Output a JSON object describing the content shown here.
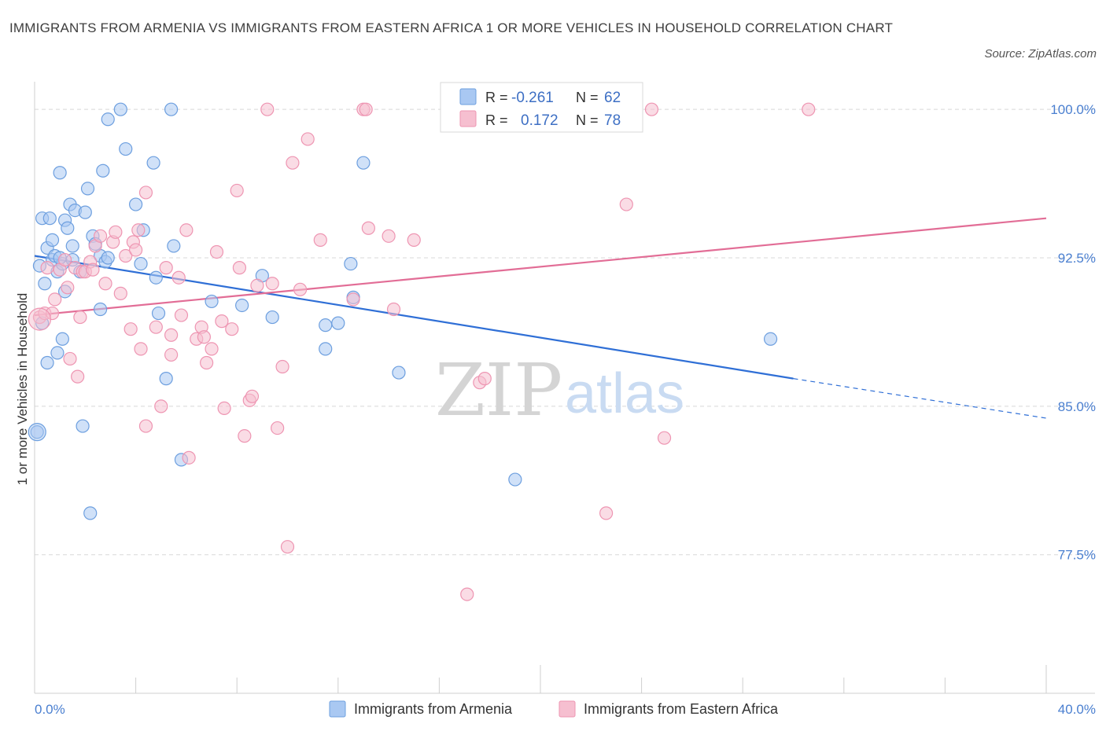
{
  "title": "IMMIGRANTS FROM ARMENIA VS IMMIGRANTS FROM EASTERN AFRICA 1 OR MORE VEHICLES IN HOUSEHOLD CORRELATION CHART",
  "source": "Source: ZipAtlas.com",
  "watermark": {
    "zip": "ZIP",
    "atlas": "atlas"
  },
  "legend": {
    "rows": [
      {
        "r_label": "R =",
        "r_value": "-0.261",
        "n_label": "N =",
        "n_value": "62"
      },
      {
        "r_label": "R =",
        "r_value": "0.172",
        "n_label": "N =",
        "n_value": "78"
      }
    ]
  },
  "bottom_legend": [
    "Immigrants from Armenia",
    "Immigrants from Eastern Africa"
  ],
  "colors": {
    "armenia_fill": "#a9c8f2",
    "armenia_stroke": "#6d9fdf",
    "armenia_line": "#2f6fd6",
    "eafrica_fill": "#f6bfd0",
    "eafrica_stroke": "#ee95b2",
    "eafrica_line": "#e26d96",
    "tick_label": "#4a7fd0",
    "grid": "#d8d8d8"
  },
  "chart_data": {
    "type": "scatter",
    "xlabel": "",
    "ylabel": "1 or more Vehicles in Household",
    "xlim": [
      0,
      40
    ],
    "ylim": [
      70.5,
      101
    ],
    "x_tick_labels": [
      {
        "value": 0,
        "label": "0.0%"
      },
      {
        "value": 40,
        "label": "40.0%"
      }
    ],
    "y_tick_labels": [
      {
        "value": 100,
        "label": "100.0%"
      },
      {
        "value": 92.5,
        "label": "92.5%"
      },
      {
        "value": 85,
        "label": "85.0%"
      },
      {
        "value": 77.5,
        "label": "77.5%"
      }
    ],
    "grid": "horizontal dashed",
    "series": [
      {
        "name": "Immigrants from Armenia",
        "r": -0.261,
        "n": 62,
        "trend": {
          "x0": 0,
          "y0": 92.6,
          "x1": 30,
          "y1": 86.4,
          "dash_to_x": 40,
          "dash_to_y": 84.4
        },
        "points": [
          [
            0.1,
            83.7
          ],
          [
            0.2,
            92.1
          ],
          [
            0.3,
            89.2
          ],
          [
            0.3,
            94.5
          ],
          [
            0.4,
            91.2
          ],
          [
            0.5,
            93.0
          ],
          [
            0.5,
            87.2
          ],
          [
            0.6,
            94.5
          ],
          [
            0.7,
            93.4
          ],
          [
            0.7,
            92.4
          ],
          [
            0.8,
            92.6
          ],
          [
            0.9,
            87.7
          ],
          [
            0.9,
            91.8
          ],
          [
            1.0,
            96.8
          ],
          [
            1.1,
            88.4
          ],
          [
            1.1,
            92.2
          ],
          [
            1.2,
            94.4
          ],
          [
            1.2,
            90.8
          ],
          [
            1.3,
            94.0
          ],
          [
            1.4,
            95.2
          ],
          [
            1.5,
            92.4
          ],
          [
            1.5,
            93.1
          ],
          [
            1.6,
            94.9
          ],
          [
            1.8,
            91.8
          ],
          [
            1.9,
            84.0
          ],
          [
            2.0,
            94.8
          ],
          [
            2.1,
            96.0
          ],
          [
            2.2,
            79.6
          ],
          [
            2.3,
            93.6
          ],
          [
            2.4,
            93.2
          ],
          [
            2.6,
            92.6
          ],
          [
            2.6,
            89.9
          ],
          [
            2.7,
            96.9
          ],
          [
            2.8,
            92.3
          ],
          [
            2.9,
            99.5
          ],
          [
            3.4,
            100.0
          ],
          [
            3.6,
            98.0
          ],
          [
            4.0,
            95.2
          ],
          [
            4.2,
            92.2
          ],
          [
            4.3,
            93.9
          ],
          [
            4.7,
            97.3
          ],
          [
            4.8,
            91.5
          ],
          [
            4.9,
            89.7
          ],
          [
            5.2,
            86.4
          ],
          [
            5.4,
            100.0
          ],
          [
            5.5,
            93.1
          ],
          [
            5.8,
            82.3
          ],
          [
            7.0,
            90.3
          ],
          [
            8.2,
            90.1
          ],
          [
            9.0,
            91.6
          ],
          [
            9.4,
            89.5
          ],
          [
            11.5,
            87.9
          ],
          [
            11.5,
            89.1
          ],
          [
            12.0,
            89.2
          ],
          [
            12.5,
            92.2
          ],
          [
            12.6,
            90.5
          ],
          [
            13.0,
            97.3
          ],
          [
            14.4,
            86.7
          ],
          [
            19.0,
            81.3
          ],
          [
            29.1,
            88.4
          ],
          [
            2.9,
            92.5
          ],
          [
            1.0,
            92.5
          ]
        ]
      },
      {
        "name": "Immigrants from Eastern Africa",
        "r": 0.172,
        "n": 78,
        "trend": {
          "x0": 0,
          "y0": 89.6,
          "x1": 40,
          "y1": 94.5
        },
        "points": [
          [
            0.2,
            89.5
          ],
          [
            0.4,
            89.7
          ],
          [
            0.5,
            92.0
          ],
          [
            0.7,
            89.7
          ],
          [
            0.8,
            90.4
          ],
          [
            1.0,
            91.9
          ],
          [
            1.2,
            92.4
          ],
          [
            1.3,
            91.0
          ],
          [
            1.4,
            87.4
          ],
          [
            1.6,
            92.0
          ],
          [
            1.7,
            86.5
          ],
          [
            1.8,
            89.5
          ],
          [
            1.9,
            91.8
          ],
          [
            2.0,
            91.8
          ],
          [
            2.2,
            92.3
          ],
          [
            2.3,
            91.9
          ],
          [
            2.4,
            93.1
          ],
          [
            2.6,
            93.6
          ],
          [
            2.8,
            91.2
          ],
          [
            3.1,
            93.3
          ],
          [
            3.2,
            93.8
          ],
          [
            3.4,
            90.7
          ],
          [
            3.6,
            92.6
          ],
          [
            3.8,
            88.9
          ],
          [
            3.9,
            93.3
          ],
          [
            4.0,
            92.9
          ],
          [
            4.1,
            93.9
          ],
          [
            4.2,
            87.9
          ],
          [
            4.4,
            95.8
          ],
          [
            4.4,
            84.0
          ],
          [
            4.8,
            89.0
          ],
          [
            5.0,
            85.0
          ],
          [
            5.2,
            92.0
          ],
          [
            5.4,
            88.6
          ],
          [
            5.4,
            87.6
          ],
          [
            5.7,
            91.5
          ],
          [
            5.8,
            89.6
          ],
          [
            6.0,
            93.9
          ],
          [
            6.1,
            82.4
          ],
          [
            6.4,
            88.4
          ],
          [
            6.6,
            89.0
          ],
          [
            6.7,
            88.5
          ],
          [
            6.8,
            87.2
          ],
          [
            7.0,
            87.9
          ],
          [
            7.2,
            92.8
          ],
          [
            7.4,
            89.3
          ],
          [
            7.5,
            84.9
          ],
          [
            7.8,
            88.9
          ],
          [
            8.0,
            95.9
          ],
          [
            8.1,
            92.0
          ],
          [
            8.3,
            83.5
          ],
          [
            8.5,
            85.3
          ],
          [
            8.6,
            85.5
          ],
          [
            8.8,
            91.1
          ],
          [
            9.2,
            100.0
          ],
          [
            9.4,
            91.2
          ],
          [
            9.6,
            83.9
          ],
          [
            9.8,
            87.0
          ],
          [
            10.0,
            77.9
          ],
          [
            10.2,
            97.3
          ],
          [
            10.5,
            90.9
          ],
          [
            10.8,
            98.5
          ],
          [
            11.3,
            93.4
          ],
          [
            12.6,
            90.4
          ],
          [
            13.0,
            100.0
          ],
          [
            13.1,
            100.0
          ],
          [
            13.2,
            94.0
          ],
          [
            14.0,
            93.6
          ],
          [
            14.2,
            89.9
          ],
          [
            15.0,
            93.4
          ],
          [
            17.1,
            75.5
          ],
          [
            17.6,
            86.2
          ],
          [
            17.8,
            86.4
          ],
          [
            22.6,
            79.6
          ],
          [
            23.4,
            95.2
          ],
          [
            24.4,
            100.0
          ],
          [
            24.9,
            83.4
          ],
          [
            30.6,
            100.0
          ]
        ]
      }
    ]
  }
}
